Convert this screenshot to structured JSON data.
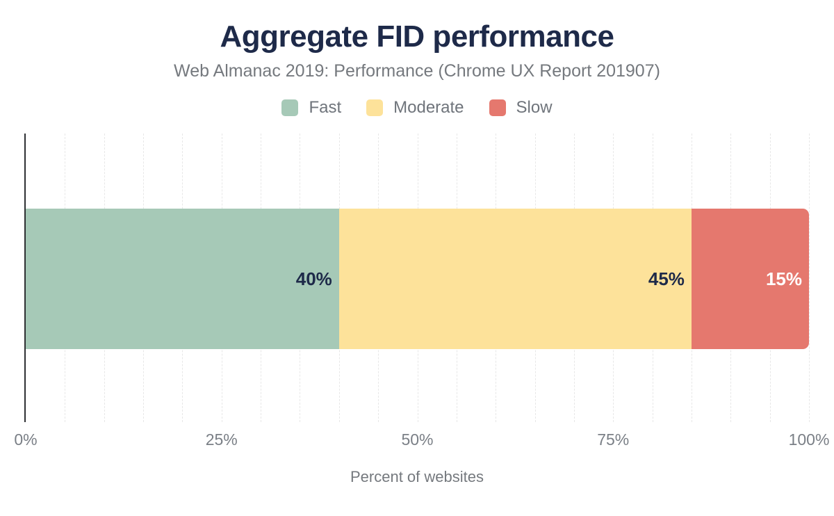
{
  "chart_data": {
    "type": "bar",
    "variant": "horizontal-stacked",
    "title": "Aggregate FID performance",
    "subtitle": "Web Almanac 2019: Performance (Chrome UX Report 201907)",
    "xlabel": "Percent of websites",
    "xlim": [
      0,
      100
    ],
    "grid": "vertical-dashed",
    "gridline_step_pct": 5,
    "legend_position": "top",
    "series": [
      {
        "name": "Fast",
        "value": 40,
        "label": "40%",
        "color": "#a6c9b7",
        "label_color": "#1e2a49"
      },
      {
        "name": "Moderate",
        "value": 45,
        "label": "45%",
        "color": "#fde29a",
        "label_color": "#1e2a49"
      },
      {
        "name": "Slow",
        "value": 15,
        "label": "15%",
        "color": "#e5786e",
        "label_color": "#ffffff"
      }
    ],
    "x_ticks": [
      {
        "value": 0,
        "label": "0%"
      },
      {
        "value": 25,
        "label": "25%"
      },
      {
        "value": 50,
        "label": "50%"
      },
      {
        "value": 75,
        "label": "75%"
      },
      {
        "value": 100,
        "label": "100%"
      }
    ],
    "colors": {
      "title_text": "#1e2a49",
      "muted_text": "#75797e",
      "tick_text": "#7a7f86",
      "axis_line": "#2e3033",
      "gridline": "#e7e7e7",
      "background": "#ffffff"
    }
  }
}
